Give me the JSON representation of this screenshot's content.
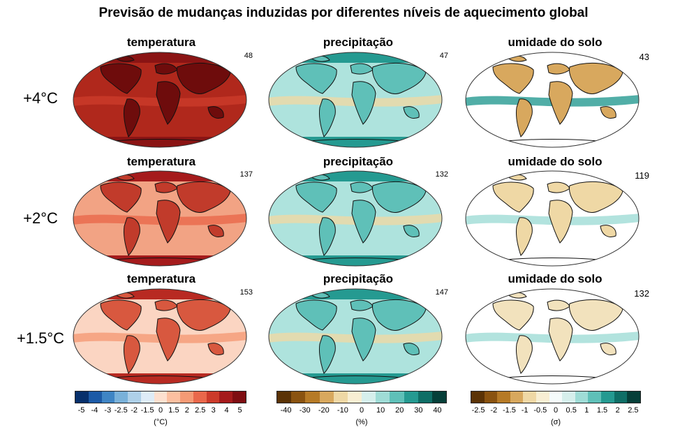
{
  "title": "Previsão de mudanças induzidas por diferentes níveis de aquecimento global",
  "rows": [
    {
      "label": "+4°C",
      "panels": [
        {
          "title": "temperatura",
          "count": "48"
        },
        {
          "title": "precipitação",
          "count": "47"
        },
        {
          "title": "umidade do solo",
          "count": "43"
        }
      ]
    },
    {
      "label": "+2°C",
      "panels": [
        {
          "title": "temperatura",
          "count": "137"
        },
        {
          "title": "precipitação",
          "count": "132"
        },
        {
          "title": "umidade do solo",
          "count": "119"
        }
      ]
    },
    {
      "label": "+1.5°C",
      "panels": [
        {
          "title": "temperatura",
          "count": "153"
        },
        {
          "title": "precipitação",
          "count": "147"
        },
        {
          "title": "umidade do solo",
          "count": "132"
        }
      ]
    }
  ],
  "colorbars": [
    {
      "unit": "(°C)",
      "colors": [
        "#08306b",
        "#1c5aa6",
        "#3f85c4",
        "#79b1d9",
        "#aed0e8",
        "#deecf7",
        "#fde0cf",
        "#fcbfa0",
        "#f59a75",
        "#e9684b",
        "#cc3b2b",
        "#a51b1c",
        "#7e0e12"
      ],
      "ticks": [
        "-5",
        "-4",
        "-3",
        "-2.5",
        "-2",
        "-1.5",
        "0",
        "1.5",
        "2",
        "2.5",
        "3",
        "4",
        "5"
      ]
    },
    {
      "unit": "(%)",
      "colors": [
        "#5b3306",
        "#8a5310",
        "#b67a26",
        "#d8a85e",
        "#efd8a5",
        "#f8eed3",
        "#d6efec",
        "#9fdcd6",
        "#5fc0b8",
        "#259a91",
        "#0f6e66",
        "#063f39"
      ],
      "ticks": [
        "-40",
        "-30",
        "-20",
        "-10",
        "0",
        "10",
        "20",
        "30",
        "40"
      ]
    },
    {
      "unit": "(σ)",
      "colors": [
        "#5b3306",
        "#8a5310",
        "#b67a26",
        "#d8a85e",
        "#efd8a5",
        "#f8eed3",
        "#f5fbfb",
        "#d6efec",
        "#9fdcd6",
        "#5fc0b8",
        "#259a91",
        "#0f6e66",
        "#063f39"
      ],
      "ticks": [
        "-2.5",
        "-2",
        "-1.5",
        "-1",
        "-0.5",
        "0",
        "0.5",
        "1",
        "1.5",
        "2",
        "2.5"
      ]
    }
  ]
}
